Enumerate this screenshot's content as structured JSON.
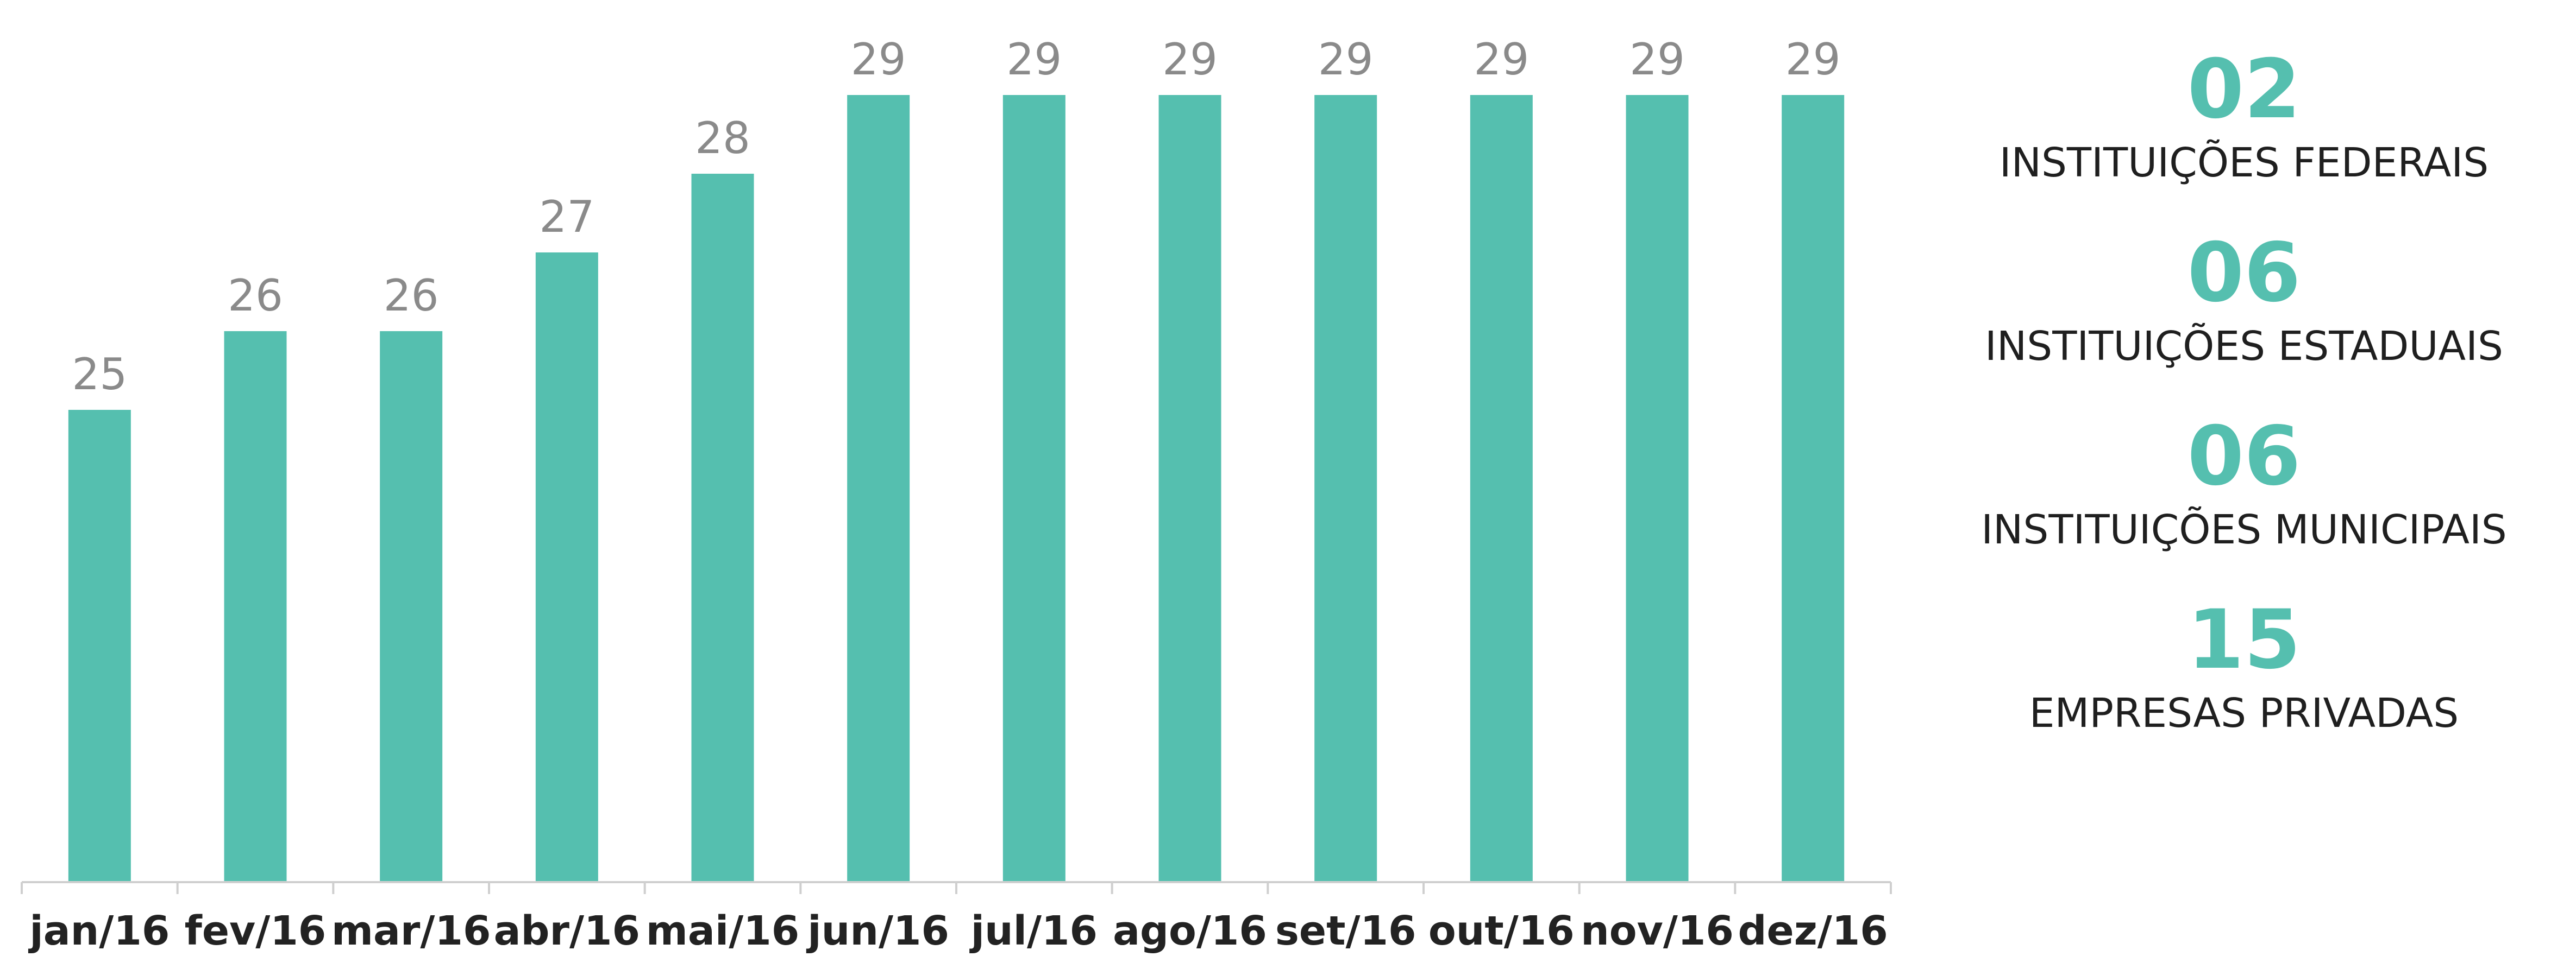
{
  "chart_data": {
    "type": "bar",
    "categories": [
      "jan/16",
      "fev/16",
      "mar/16",
      "abr/16",
      "mai/16",
      "jun/16",
      "jul/16",
      "ago/16",
      "set/16",
      "out/16",
      "nov/16",
      "dez/16"
    ],
    "values": [
      25,
      26,
      26,
      27,
      28,
      29,
      29,
      29,
      29,
      29,
      29,
      29
    ],
    "value_labels": [
      "25",
      "26",
      "26",
      "27",
      "28",
      "29",
      "29",
      "29",
      "29",
      "29",
      "29",
      "29"
    ],
    "title": "",
    "xlabel": "",
    "ylabel": "",
    "ylim": [
      19,
      29
    ],
    "grid": false,
    "legend": "none",
    "bar_color": "#55bfaf"
  },
  "stats": [
    {
      "number": "02",
      "label": "INSTITUIÇÕES  FEDERAIS"
    },
    {
      "number": "06",
      "label": "INSTITUIÇÕES  ESTADUAIS"
    },
    {
      "number": "06",
      "label": "INSTITUIÇÕES  MUNICIPAIS"
    },
    {
      "number": "15",
      "label": "EMPRESAS PRIVADAS"
    }
  ],
  "colors": {
    "accent": "#55bfaf",
    "value_text": "#8a8a8a",
    "label_text": "#222222"
  }
}
